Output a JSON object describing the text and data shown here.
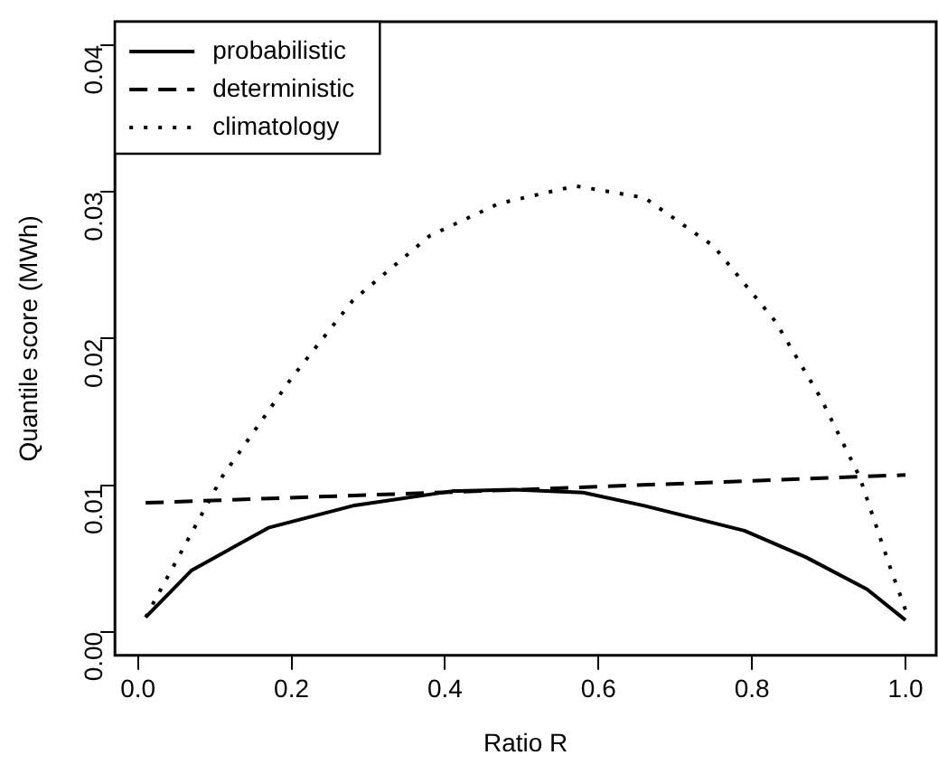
{
  "chart_data": {
    "type": "line",
    "xlabel": "Ratio R",
    "ylabel": "Quantile score (MWh)",
    "legend": "top left",
    "marker": "none",
    "grid": false,
    "xlim": [
      -0.03,
      1.04
    ],
    "ylim": [
      -0.0016,
      0.0416
    ],
    "xticks": [
      {
        "value": 0,
        "label": "0.0"
      },
      {
        "value": 0.2,
        "label": "0.2"
      },
      {
        "value": 0.4,
        "label": "0.4"
      },
      {
        "value": 0.6,
        "label": "0.6"
      },
      {
        "value": 0.8,
        "label": "0.8"
      },
      {
        "value": 1,
        "label": "1.0"
      }
    ],
    "yticks": [
      {
        "value": 0,
        "label": "0.00"
      },
      {
        "value": 0.01,
        "label": "0.01"
      },
      {
        "value": 0.02,
        "label": "0.02"
      },
      {
        "value": 0.03,
        "label": "0.03"
      },
      {
        "value": 0.04,
        "label": "0.04"
      }
    ],
    "series": [
      {
        "name": "probabilistic",
        "color": "#000000",
        "line_style": "solid",
        "x": [
          0.01,
          0.07,
          0.17,
          0.28,
          0.41,
          0.49,
          0.58,
          0.66,
          0.79,
          0.87,
          0.95,
          1.0
        ],
        "values": [
          0.001,
          0.0042,
          0.0071,
          0.0086,
          0.0096,
          0.0097,
          0.0095,
          0.0086,
          0.0069,
          0.0051,
          0.0029,
          0.0008
        ]
      },
      {
        "name": "deterministic",
        "color": "#000000",
        "line_style": "dashed",
        "x": [
          0.01,
          0.5,
          1.0
        ],
        "values": [
          0.0088,
          0.0097,
          0.0107
        ]
      },
      {
        "name": "climatology",
        "color": "#000000",
        "line_style": "dotted",
        "x": [
          0.01,
          0.11,
          0.2,
          0.28,
          0.38,
          0.47,
          0.57,
          0.66,
          0.75,
          0.83,
          0.89,
          0.94,
          0.98,
          1.0
        ],
        "values": [
          0.001,
          0.0106,
          0.0173,
          0.0226,
          0.027,
          0.0292,
          0.0304,
          0.0296,
          0.0263,
          0.0212,
          0.0159,
          0.0106,
          0.0044,
          0.0015
        ]
      }
    ]
  }
}
